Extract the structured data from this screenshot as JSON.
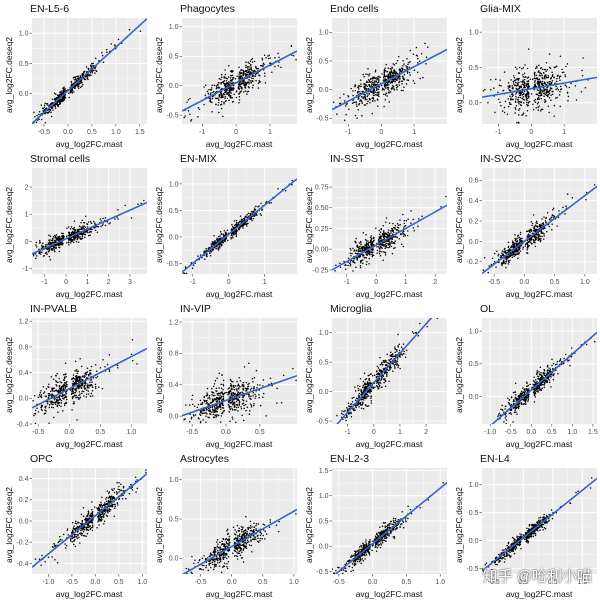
{
  "watermark": "知乎 @哈利小喵",
  "colors": {
    "panel_bg": "#ebebeb",
    "grid": "#ffffff",
    "points": "#000000",
    "fit_line": "#3366cc"
  },
  "chart_data": [
    {
      "type": "scatter",
      "title": "EN-L5-6",
      "xlabel": "avg_log2FC.mast",
      "ylabel": "avg_log2FC.deseq2",
      "xlim": [
        -0.75,
        1.65
      ],
      "ylim": [
        -0.5,
        1.25
      ],
      "xticks": [
        -0.5,
        0.0,
        0.5,
        1.0,
        1.5
      ],
      "xtick_labels": [
        "-0.5",
        "0.0",
        "0.5",
        "1.0",
        "1.5"
      ],
      "yticks": [
        0.0,
        0.5,
        1.0
      ],
      "ytick_labels": [
        "0.0",
        "0.5",
        "1.0"
      ],
      "fit": {
        "slope": 0.72,
        "intercept": 0.05
      },
      "spread": 0.05
    },
    {
      "type": "scatter",
      "title": "Phagocytes",
      "xlabel": "avg_log2FC.mast",
      "ylabel": "avg_log2FC.deseq2",
      "xlim": [
        -1.6,
        1.8
      ],
      "ylim": [
        -0.65,
        1.15
      ],
      "xticks": [
        -1,
        0,
        1
      ],
      "xtick_labels": [
        "-1",
        "0",
        "1"
      ],
      "yticks": [
        -0.5,
        0.0,
        0.5,
        1.0
      ],
      "ytick_labels": [
        "-0.5",
        "0.0",
        "0.5",
        "1.0"
      ],
      "fit": {
        "slope": 0.3,
        "intercept": 0.05
      },
      "spread": 0.12
    },
    {
      "type": "scatter",
      "title": "Endo cells",
      "xlabel": "avg_log2FC.mast",
      "ylabel": "avg_log2FC.deseq2",
      "xlim": [
        -1.5,
        2.0
      ],
      "ylim": [
        -0.6,
        1.25
      ],
      "xticks": [
        -1,
        0,
        1
      ],
      "xtick_labels": [
        "-1",
        "0",
        "1"
      ],
      "yticks": [
        -0.5,
        0.0,
        0.5,
        1.0
      ],
      "ytick_labels": [
        "-0.5",
        "0.0",
        "0.5",
        "1.0"
      ],
      "fit": {
        "slope": 0.3,
        "intercept": 0.1
      },
      "spread": 0.14
    },
    {
      "type": "scatter",
      "title": "Glia-MIX",
      "xlabel": "avg_log2FC.mast",
      "ylabel": "avg_log2FC.deseq2",
      "xlim": [
        -1.5,
        2.0
      ],
      "ylim": [
        -0.3,
        1.2
      ],
      "xticks": [
        -1,
        0,
        1
      ],
      "xtick_labels": [
        "-1",
        "0",
        "1"
      ],
      "yticks": [
        0.0,
        0.5,
        1.0
      ],
      "ytick_labels": [
        "0.0",
        "0.5",
        "1.0"
      ],
      "fit": {
        "slope": 0.08,
        "intercept": 0.2
      },
      "spread": 0.15
    },
    {
      "type": "scatter",
      "title": "Stromal cells",
      "xlabel": "avg_log2FC.mast",
      "ylabel": "avg_log2FC.deseq2",
      "xlim": [
        -1.6,
        3.8
      ],
      "ylim": [
        -1.2,
        2.7
      ],
      "xticks": [
        -1,
        0,
        1,
        2,
        3
      ],
      "xtick_labels": [
        "-1",
        "0",
        "1",
        "2",
        "3"
      ],
      "yticks": [
        -1,
        0,
        1,
        2
      ],
      "ytick_labels": [
        "-1",
        "0",
        "1",
        "2"
      ],
      "fit": {
        "slope": 0.35,
        "intercept": 0.1
      },
      "spread": 0.14
    },
    {
      "type": "scatter",
      "title": "EN-MIX",
      "xlabel": "avg_log2FC.mast",
      "ylabel": "avg_log2FC.deseq2",
      "xlim": [
        -1.3,
        1.9
      ],
      "ylim": [
        -0.7,
        1.3
      ],
      "xticks": [
        -1,
        0,
        1
      ],
      "xtick_labels": [
        "-1",
        "0",
        "1"
      ],
      "yticks": [
        -0.5,
        0.0,
        0.5,
        1.0
      ],
      "ytick_labels": [
        "-0.5",
        "0.0",
        "0.5",
        "1.0"
      ],
      "fit": {
        "slope": 0.55,
        "intercept": 0.05
      },
      "spread": 0.05
    },
    {
      "type": "scatter",
      "title": "IN-SST",
      "xlabel": "avg_log2FC.mast",
      "ylabel": "avg_log2FC.deseq2",
      "xlim": [
        -1.5,
        2.4
      ],
      "ylim": [
        -0.3,
        0.98
      ],
      "xticks": [
        -1,
        0,
        1,
        2
      ],
      "xtick_labels": [
        "-1",
        "0",
        "1",
        "2"
      ],
      "yticks": [
        -0.25,
        0.0,
        0.25,
        0.5,
        0.75
      ],
      "ytick_labels": [
        "-0.25",
        "0.00",
        "0.25",
        "0.50",
        "0.75"
      ],
      "fit": {
        "slope": 0.2,
        "intercept": 0.05
      },
      "spread": 0.07
    },
    {
      "type": "scatter",
      "title": "IN-SV2C",
      "xlabel": "avg_log2FC.mast",
      "ylabel": "avg_log2FC.deseq2",
      "xlim": [
        -0.7,
        1.2
      ],
      "ylim": [
        -0.32,
        0.72
      ],
      "xticks": [
        -0.5,
        0.0,
        0.5,
        1.0
      ],
      "xtick_labels": [
        "-0.5",
        "0.0",
        "0.5",
        "1.0"
      ],
      "yticks": [
        -0.2,
        0.0,
        0.2,
        0.4,
        0.6
      ],
      "ytick_labels": [
        "-0.2",
        "0.0",
        "0.2",
        "0.4",
        "0.6"
      ],
      "fit": {
        "slope": 0.45,
        "intercept": 0.0
      },
      "spread": 0.05
    },
    {
      "type": "scatter",
      "title": "IN-PVALB",
      "xlabel": "avg_log2FC.mast",
      "ylabel": "avg_log2FC.deseq2",
      "xlim": [
        -0.6,
        1.25
      ],
      "ylim": [
        -0.4,
        1.25
      ],
      "xticks": [
        -0.5,
        0.0,
        0.5,
        1.0
      ],
      "xtick_labels": [
        "-0.5",
        "0.0",
        "0.5",
        "1.0"
      ],
      "yticks": [
        -0.4,
        0.0,
        0.4,
        0.8,
        1.2
      ],
      "ytick_labels": [
        "-0.4",
        "0.0",
        "0.4",
        "0.8",
        "1.2"
      ],
      "fit": {
        "slope": 0.5,
        "intercept": 0.15
      },
      "spread": 0.12
    },
    {
      "type": "scatter",
      "title": "IN-VIP",
      "xlabel": "avg_log2FC.mast",
      "ylabel": "avg_log2FC.deseq2",
      "xlim": [
        -0.65,
        1.05
      ],
      "ylim": [
        -0.1,
        1.25
      ],
      "xticks": [
        -0.5,
        0.0,
        0.5
      ],
      "xtick_labels": [
        "-0.5",
        "0.0",
        "0.5"
      ],
      "yticks": [
        0.0,
        0.4,
        0.8,
        1.2
      ],
      "ytick_labels": [
        "0.0",
        "0.4",
        "0.8",
        "1.2"
      ],
      "fit": {
        "slope": 0.3,
        "intercept": 0.2
      },
      "spread": 0.11
    },
    {
      "type": "scatter",
      "title": "Microglia",
      "xlabel": "avg_log2FC.mast",
      "ylabel": "avg_log2FC.deseq2",
      "xlim": [
        -1.6,
        2.8
      ],
      "ylim": [
        -0.55,
        1.25
      ],
      "xticks": [
        -1,
        0,
        1,
        2
      ],
      "xtick_labels": [
        "-1",
        "0",
        "1",
        "2"
      ],
      "yticks": [
        -0.5,
        0.0,
        0.5,
        1.0
      ],
      "ytick_labels": [
        "-0.5",
        "0.0",
        "0.5",
        "1.0"
      ],
      "fit": {
        "slope": 0.5,
        "intercept": 0.15
      },
      "spread": 0.1
    },
    {
      "type": "scatter",
      "title": "OL",
      "xlabel": "avg_log2FC.mast",
      "ylabel": "avg_log2FC.deseq2",
      "xlim": [
        -1.2,
        1.6
      ],
      "ylim": [
        -0.42,
        1.2
      ],
      "xticks": [
        -1.0,
        -0.5,
        0.0,
        0.5,
        1.0,
        1.5
      ],
      "xtick_labels": [
        "-1.0",
        "-0.5",
        "0.0",
        "0.5",
        "1.0",
        "1.5"
      ],
      "yticks": [
        0.0,
        0.5,
        1.0
      ],
      "ytick_labels": [
        "0.0",
        "0.5",
        "1.0"
      ],
      "fit": {
        "slope": 0.55,
        "intercept": 0.1
      },
      "spread": 0.07
    },
    {
      "type": "scatter",
      "title": "OPC",
      "xlabel": "avg_log2FC.mast",
      "ylabel": "avg_log2FC.deseq2",
      "xlim": [
        -1.35,
        1.1
      ],
      "ylim": [
        -0.5,
        0.5
      ],
      "xticks": [
        -1.0,
        -0.5,
        0.0,
        0.5,
        1.0
      ],
      "xtick_labels": [
        "-1.0",
        "-0.5",
        "0.0",
        "0.5",
        "1.0"
      ],
      "yticks": [
        -0.4,
        -0.2,
        0.0,
        0.2,
        0.4
      ],
      "ytick_labels": [
        "-0.4",
        "-0.2",
        "0.0",
        "0.2",
        "0.4"
      ],
      "fit": {
        "slope": 0.36,
        "intercept": 0.05
      },
      "spread": 0.05
    },
    {
      "type": "scatter",
      "title": "Astrocytes",
      "xlabel": "avg_log2FC.mast",
      "ylabel": "avg_log2FC.deseq2",
      "xlim": [
        -0.8,
        1.05
      ],
      "ylim": [
        -0.2,
        1.15
      ],
      "xticks": [
        -0.5,
        0.0,
        0.5,
        1.0
      ],
      "xtick_labels": [
        "-0.5",
        "0.0",
        "0.5",
        "1.0"
      ],
      "yticks": [
        0.0,
        0.5,
        1.0
      ],
      "ytick_labels": [
        "0.0",
        "0.5",
        "1.0"
      ],
      "fit": {
        "slope": 0.45,
        "intercept": 0.15
      },
      "spread": 0.08
    },
    {
      "type": "scatter",
      "title": "EN-L2-3",
      "xlabel": "avg_log2FC.mast",
      "ylabel": "avg_log2FC.deseq2",
      "xlim": [
        -0.6,
        1.1
      ],
      "ylim": [
        -0.55,
        1.55
      ],
      "xticks": [
        -0.5,
        0.0,
        0.5,
        1.0
      ],
      "xtick_labels": [
        "-0.5",
        "0.0",
        "0.5",
        "1.0"
      ],
      "yticks": [
        -0.5,
        0.0,
        0.5,
        1.0,
        1.5
      ],
      "ytick_labels": [
        "-0.5",
        "0.0",
        "0.5",
        "1.0",
        "1.5"
      ],
      "fit": {
        "slope": 1.1,
        "intercept": 0.05
      },
      "spread": 0.07
    },
    {
      "type": "scatter",
      "title": "EN-L4",
      "xlabel": "avg_log2FC.mast",
      "ylabel": "avg_log2FC.deseq2",
      "xlim": [
        -0.7,
        1.25
      ],
      "ylim": [
        -0.6,
        1.3
      ],
      "xticks": [
        -0.5,
        0.0,
        0.5,
        1.0
      ],
      "xtick_labels": [
        "-0.5",
        "0.0",
        "0.5",
        "1.0"
      ],
      "yticks": [
        -0.5,
        0.0,
        0.5,
        1.0
      ],
      "ytick_labels": [
        "-0.5",
        "0.0",
        "0.5",
        "1.0"
      ],
      "fit": {
        "slope": 0.85,
        "intercept": 0.05
      },
      "spread": 0.05
    }
  ]
}
